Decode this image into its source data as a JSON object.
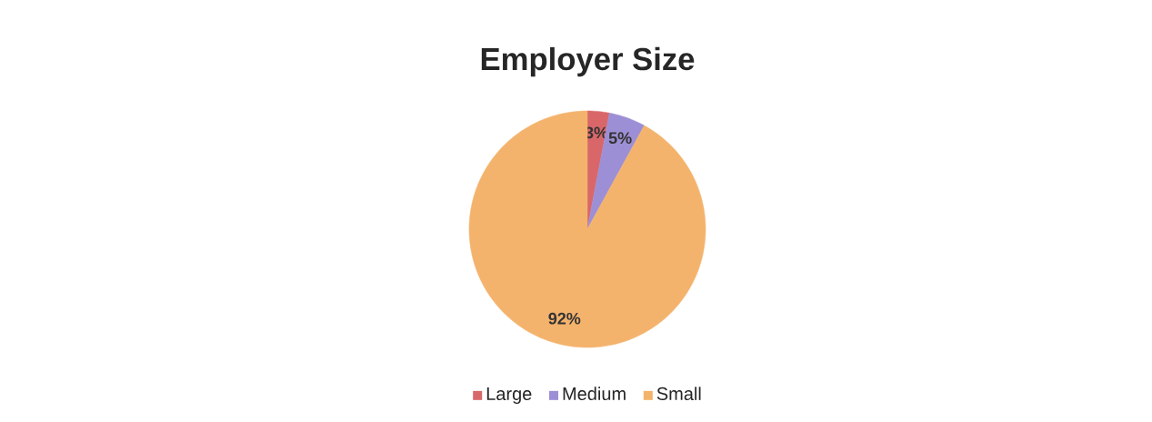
{
  "chart_data": {
    "type": "pie",
    "title": "Employer Size",
    "categories": [
      "Large",
      "Medium",
      "Small"
    ],
    "values": [
      3,
      5,
      92
    ],
    "colors": [
      "#d9676a",
      "#9d8fd6",
      "#f4b36c"
    ],
    "value_labels": [
      "3%",
      "5%",
      "92%"
    ],
    "legend": "bottom"
  }
}
